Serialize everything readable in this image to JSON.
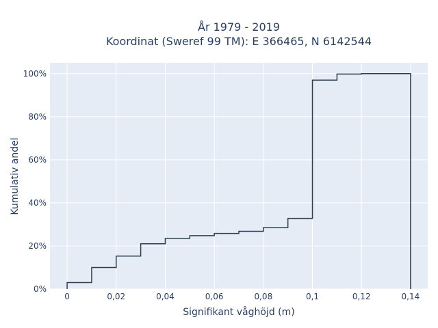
{
  "chart_data": {
    "type": "line",
    "line_shape": "step",
    "title": [
      "År 1979 - 2019",
      "Koordinat (Sweref 99 TM): E 366465, N 6142544"
    ],
    "xlabel": "Signifikant våghöjd (m)",
    "ylabel": "Kumulativ andel",
    "xlim": [
      -0.007,
      0.147
    ],
    "ylim": [
      0,
      1.05
    ],
    "grid": true,
    "x_ticks": [
      {
        "value": 0,
        "label": "0"
      },
      {
        "value": 0.02,
        "label": "0,02"
      },
      {
        "value": 0.04,
        "label": "0,04"
      },
      {
        "value": 0.06,
        "label": "0,06"
      },
      {
        "value": 0.08,
        "label": "0,08"
      },
      {
        "value": 0.1,
        "label": "0,1"
      },
      {
        "value": 0.12,
        "label": "0,12"
      },
      {
        "value": 0.14,
        "label": "0,14"
      }
    ],
    "y_ticks": [
      {
        "value": 0,
        "label": "0%"
      },
      {
        "value": 0.2,
        "label": "20%"
      },
      {
        "value": 0.4,
        "label": "40%"
      },
      {
        "value": 0.6,
        "label": "60%"
      },
      {
        "value": 0.8,
        "label": "80%"
      },
      {
        "value": 1.0,
        "label": "100%"
      }
    ],
    "series": [
      {
        "color": "#2f3e4e",
        "x": [
          0,
          0.01,
          0.02,
          0.03,
          0.04,
          0.05,
          0.06,
          0.07,
          0.08,
          0.09,
          0.1,
          0.11,
          0.12,
          0.13,
          0.14
        ],
        "y": [
          0,
          0.03,
          0.1,
          0.153,
          0.21,
          0.235,
          0.248,
          0.258,
          0.268,
          0.285,
          0.328,
          0.97,
          0.998,
          1.0,
          1.0
        ],
        "end_drop_to": 0
      }
    ]
  }
}
